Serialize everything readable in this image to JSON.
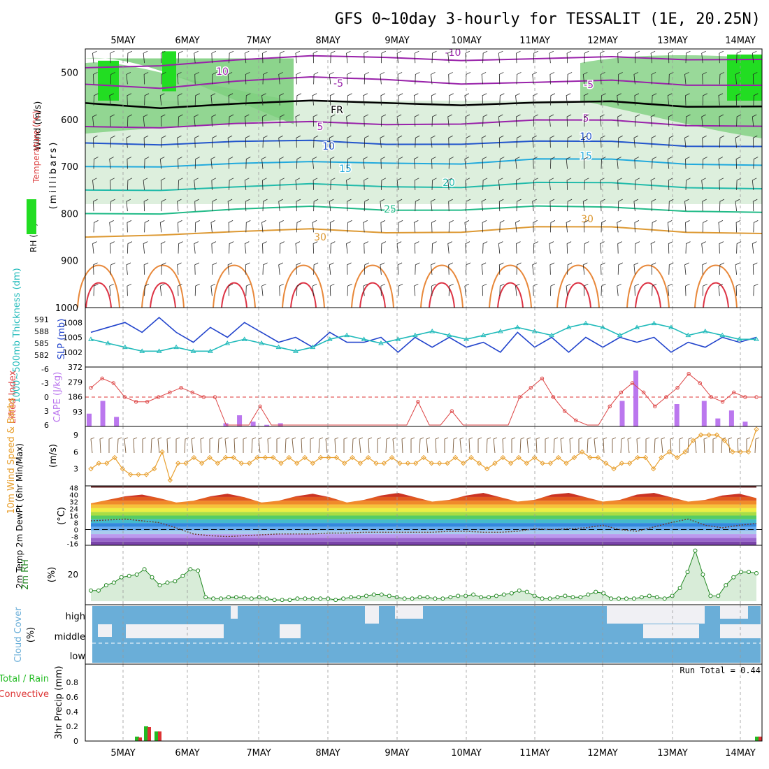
{
  "title": "GFS 0~10day 3-hourly for TESSALIT (1E, 20.25N)",
  "days": [
    "5MAY",
    "6MAY",
    "7MAY",
    "8MAY",
    "9MAY",
    "10MAY",
    "11MAY",
    "12MAY",
    "13MAY",
    "14MAY"
  ],
  "colors": {
    "rh_light": "#cfe8cf",
    "rh_mid": "#7fcf7f",
    "rh_bright": "#22dd22",
    "slp_line": "#2244cc",
    "thickness_line": "#22bbbb",
    "lifted_line": "#dd4444",
    "cape_bar": "#bb77ee",
    "wind_speed": "#e8a030",
    "barb": "#7a5a3a",
    "rh2m_line": "#228822",
    "cloud_fill": "#6aaed8",
    "precip_total": "#22bb22",
    "precip_conv": "#dd3333"
  },
  "chart_data": [
    {
      "type": "line",
      "panel": "upper_air",
      "ylabel_lines": [
        "RH (%)",
        "Temperature (°C)",
        "Wind (m/s)",
        "(millibars)"
      ],
      "y_ticks": [
        500,
        600,
        700,
        800,
        900,
        1000
      ],
      "ylim": [
        450,
        1000
      ],
      "series": [
        {
          "name": "-10",
          "level_mb": [
            490,
            480,
            475,
            470,
            465,
            470,
            475,
            470,
            468,
            470
          ]
        },
        {
          "name": "-5",
          "level_mb": [
            525,
            528,
            520,
            515,
            512,
            520,
            525,
            520,
            522,
            525
          ]
        },
        {
          "name": "FR",
          "level_mb": [
            565,
            570,
            568,
            565,
            562,
            565,
            568,
            565,
            568,
            570
          ]
        },
        {
          "name": "5",
          "level_mb": [
            615,
            612,
            610,
            610,
            608,
            605,
            605,
            605,
            608,
            612
          ]
        },
        {
          "name": "10",
          "level_mb": [
            650,
            648,
            648,
            650,
            650,
            648,
            650,
            650,
            652,
            655
          ]
        },
        {
          "name": "15",
          "level_mb": [
            700,
            695,
            695,
            695,
            690,
            690,
            688,
            688,
            690,
            695
          ]
        },
        {
          "name": "20",
          "level_mb": [
            750,
            745,
            745,
            742,
            740,
            740,
            738,
            738,
            740,
            745
          ]
        },
        {
          "name": "25",
          "level_mb": [
            800,
            795,
            792,
            790,
            790,
            788,
            788,
            790,
            790,
            795
          ]
        },
        {
          "name": "30",
          "level_mb": [
            850,
            840,
            840,
            838,
            838,
            835,
            832,
            832,
            835,
            840
          ]
        }
      ],
      "labels": [
        "-10",
        "10",
        "-5",
        "FR",
        "5",
        "10",
        "15",
        "20",
        "25",
        "30",
        "-5",
        "5",
        "10",
        "15",
        "30"
      ]
    },
    {
      "type": "line",
      "panel": "slp_thickness",
      "ylabel_left": "1000~500mb Thickness (dm)",
      "ylabel_right": "SLP (mb)",
      "left_ticks": [
        582,
        585,
        588,
        591
      ],
      "right_ticks": [
        1002,
        1005,
        1008
      ],
      "series": [
        {
          "name": "SLP (mb)",
          "values": [
            1006,
            1007,
            1008,
            1006,
            1009,
            1006,
            1004,
            1007,
            1005,
            1008,
            1006,
            1004,
            1005,
            1003,
            1006,
            1004,
            1004,
            1005,
            1002,
            1005,
            1003,
            1005,
            1003,
            1004,
            1002,
            1006,
            1003,
            1005,
            1002,
            1005,
            1003,
            1005,
            1004,
            1005,
            1002,
            1004,
            1003,
            1005,
            1004,
            1005
          ]
        },
        {
          "name": "1000~500mb Thickness (dm)",
          "values": [
            586,
            585,
            584,
            583,
            583,
            584,
            583,
            583,
            585,
            586,
            585,
            584,
            583,
            584,
            586,
            587,
            586,
            585,
            586,
            587,
            588,
            587,
            586,
            587,
            588,
            589,
            588,
            587,
            589,
            590,
            589,
            587,
            589,
            590,
            589,
            587,
            588,
            587,
            586,
            586
          ]
        }
      ]
    },
    {
      "type": "bar",
      "panel": "lifted_cape",
      "ylabel_left": "Lifted Index",
      "ylabel_right": "CAPE (J/kg)",
      "left_ticks": [
        -6,
        -3,
        0,
        3,
        6
      ],
      "right_ticks": [
        93,
        186,
        279,
        372
      ],
      "series": [
        {
          "name": "Lifted Index",
          "values": [
            -2,
            -4,
            -3,
            0,
            1,
            1,
            0,
            -1,
            -2,
            -1,
            0,
            0,
            6,
            6,
            6,
            2,
            6,
            6,
            6,
            6,
            6,
            6,
            6,
            6,
            6,
            6,
            6,
            6,
            6,
            1,
            6,
            6,
            3,
            6,
            6,
            6,
            6,
            6,
            0,
            -2,
            -4,
            0,
            3,
            5,
            6,
            6,
            2,
            -1,
            -3,
            -1,
            2,
            0,
            -2,
            -5,
            -3,
            0,
            1,
            -1,
            0,
            0
          ]
        },
        {
          "name": "CAPE (J/kg)",
          "values": [
            80,
            160,
            60,
            0,
            0,
            0,
            0,
            0,
            0,
            0,
            20,
            70,
            30,
            10,
            20,
            0,
            0,
            0,
            0,
            0,
            0,
            0,
            0,
            0,
            0,
            0,
            0,
            0,
            0,
            0,
            0,
            0,
            0,
            0,
            0,
            0,
            0,
            0,
            0,
            160,
            350,
            0,
            0,
            140,
            0,
            160,
            50,
            100,
            30,
            0
          ]
        }
      ]
    },
    {
      "type": "line",
      "panel": "wind10m",
      "ylabel": "10m Wind Speed & Barbs",
      "unit": "(m/s)",
      "y_ticks": [
        3,
        6,
        9
      ],
      "series": [
        {
          "name": "10m Wind Speed",
          "values": [
            3,
            4,
            4,
            5,
            3,
            2,
            2,
            2,
            3,
            6,
            1,
            4,
            4,
            5,
            4,
            5,
            4,
            5,
            5,
            4,
            4,
            5,
            5,
            5,
            4,
            5,
            4,
            5,
            4,
            5,
            5,
            5,
            4,
            5,
            4,
            5,
            4,
            4,
            5,
            4,
            4,
            4,
            5,
            4,
            4,
            4,
            5,
            4,
            5,
            4,
            3,
            4,
            5,
            4,
            5,
            4,
            5,
            4,
            4,
            5,
            4,
            5,
            6,
            5,
            5,
            4,
            3,
            4,
            4,
            5,
            5,
            3,
            5,
            6,
            5,
            6,
            8,
            9,
            9,
            9,
            8,
            6,
            6,
            6,
            10
          ]
        }
      ]
    },
    {
      "type": "area",
      "panel": "temp2m",
      "ylabel": "2m Temp 2m DewPt (6hr Min/Max)",
      "unit": "(°C)",
      "y_ticks": [
        -16,
        -8,
        0,
        8,
        16,
        24,
        32,
        40,
        48
      ],
      "series": [
        {
          "name": "2m Temp",
          "values": [
            30,
            34,
            38,
            40,
            36,
            31,
            33,
            38,
            41,
            37,
            31,
            33,
            38,
            41,
            37,
            31,
            34,
            39,
            42,
            37,
            32,
            34,
            39,
            42,
            37,
            32,
            34,
            40,
            42,
            37,
            32,
            34,
            40,
            42,
            37,
            32,
            34,
            39,
            41,
            36
          ]
        },
        {
          "name": "2m DewPt",
          "values": [
            10,
            11,
            12,
            10,
            8,
            2,
            -5,
            -7,
            -8,
            -7,
            -6,
            -5,
            -5,
            -5,
            -4,
            -4,
            -3,
            -3,
            -3,
            -3,
            -3,
            -2,
            -2,
            -3,
            -3,
            -2,
            1,
            0,
            1,
            2,
            5,
            0,
            -2,
            3,
            8,
            12,
            5,
            2,
            5,
            7
          ]
        }
      ]
    },
    {
      "type": "area",
      "panel": "rh2m",
      "ylabel": "2m RH",
      "unit": "(%)",
      "y_ticks": [
        20
      ],
      "series": [
        {
          "name": "2m RH",
          "values": [
            8,
            8,
            12,
            14,
            18,
            19,
            20,
            24,
            18,
            12,
            14,
            15,
            19,
            24,
            23,
            3,
            2,
            2,
            3,
            3,
            3,
            2,
            3,
            2,
            1,
            1,
            1,
            2,
            2,
            2,
            2,
            2,
            1,
            2,
            3,
            3,
            4,
            5,
            5,
            4,
            3,
            2,
            2,
            3,
            3,
            2,
            2,
            3,
            4,
            4,
            5,
            3,
            3,
            4,
            5,
            6,
            8,
            7,
            4,
            2,
            2,
            3,
            4,
            3,
            3,
            5,
            7,
            6,
            2,
            2,
            2,
            2,
            3,
            4,
            3,
            2,
            4,
            10,
            22,
            38,
            20,
            4,
            4,
            12,
            18,
            22,
            22,
            21
          ]
        }
      ]
    },
    {
      "type": "area",
      "panel": "cloud_cover",
      "ylabel": "Cloud Cover",
      "unit": "(%)",
      "y_ticks": [
        "high",
        "middle",
        "low"
      ]
    },
    {
      "type": "bar",
      "panel": "precip",
      "ylabel": "3hr Precip (mm)",
      "legend": [
        "Total / Rain",
        "Convective"
      ],
      "annotation": "Run Total = 0.44",
      "y_ticks": [
        0,
        0.2,
        0.4,
        0.6,
        0.8
      ],
      "series": [
        {
          "name": "Total / Rain",
          "values": [
            0.06,
            0.2,
            0.13,
            0.06
          ]
        },
        {
          "name": "Convective",
          "values": [
            0.05,
            0.19,
            0.13,
            0.06
          ]
        }
      ]
    }
  ]
}
